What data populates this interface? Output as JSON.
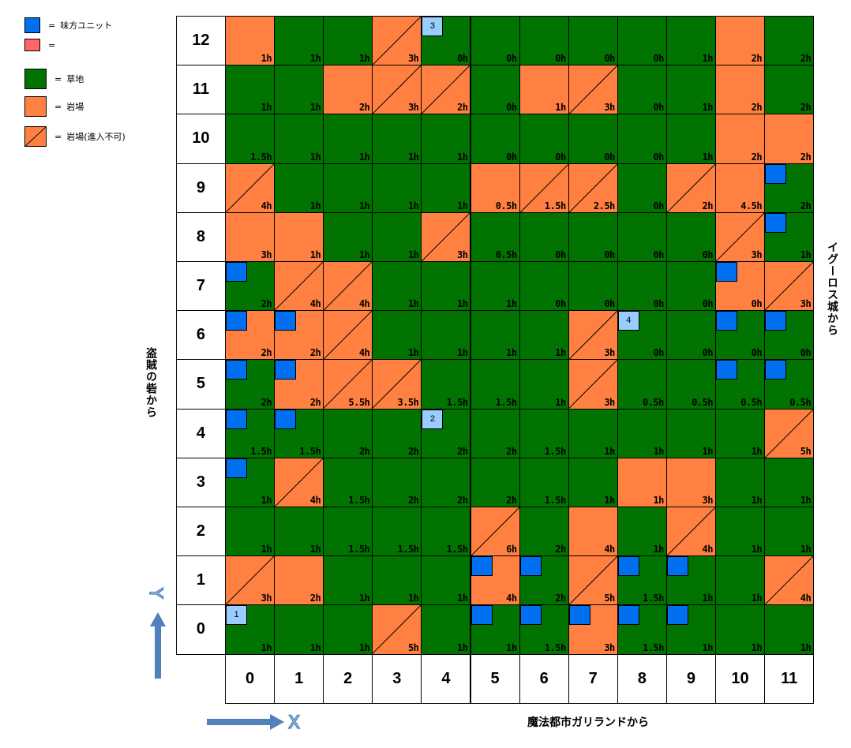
{
  "colors": {
    "grass": "#007300",
    "rock": "#ff8040",
    "ally": "#0070f0",
    "ally_light": "#99ccff",
    "enemy": "#ff6666"
  },
  "legend": [
    {
      "kind": "ally",
      "eq": "=",
      "text": "味方ユニット"
    },
    {
      "kind": "enemy",
      "eq": "=",
      "text": ""
    },
    {
      "kind": "grass",
      "eq": "=",
      "text": "草地"
    },
    {
      "kind": "rock",
      "eq": "=",
      "text": "岩場"
    },
    {
      "kind": "blocked",
      "eq": "=",
      "text": "岩場(進入不可)"
    }
  ],
  "axis": {
    "x_labels": [
      "0",
      "1",
      "2",
      "3",
      "4",
      "5",
      "6",
      "7",
      "8",
      "9",
      "10",
      "11"
    ],
    "y_labels": [
      "0",
      "1",
      "2",
      "3",
      "4",
      "5",
      "6",
      "7",
      "8",
      "9",
      "10",
      "11",
      "12"
    ],
    "x_symbol": "X",
    "y_symbol": "Y"
  },
  "directions": {
    "left": "盗賊の砦から",
    "right": "イグーロス城から",
    "bottom": "魔法都市ガリランドから"
  },
  "terrain_key": "G = grass, R = rock, B = rock (impassable); rows listed from y=12 down to y=0",
  "terrain_rows": [
    [
      "R",
      "G",
      "G",
      "B",
      "G",
      "G",
      "G",
      "G",
      "G",
      "G",
      "R",
      "G"
    ],
    [
      "G",
      "G",
      "R",
      "B",
      "B",
      "G",
      "R",
      "B",
      "G",
      "G",
      "R",
      "G"
    ],
    [
      "G",
      "G",
      "G",
      "G",
      "G",
      "G",
      "G",
      "G",
      "G",
      "G",
      "R",
      "R"
    ],
    [
      "B",
      "G",
      "G",
      "G",
      "G",
      "R",
      "B",
      "B",
      "G",
      "B",
      "R",
      "G"
    ],
    [
      "R",
      "R",
      "G",
      "G",
      "B",
      "G",
      "G",
      "G",
      "G",
      "G",
      "B",
      "G"
    ],
    [
      "G",
      "B",
      "B",
      "G",
      "G",
      "G",
      "G",
      "G",
      "G",
      "G",
      "R",
      "B"
    ],
    [
      "R",
      "R",
      "B",
      "G",
      "G",
      "G",
      "G",
      "B",
      "G",
      "G",
      "G",
      "G"
    ],
    [
      "G",
      "R",
      "B",
      "B",
      "G",
      "G",
      "G",
      "B",
      "G",
      "G",
      "G",
      "G"
    ],
    [
      "G",
      "G",
      "G",
      "G",
      "G",
      "G",
      "G",
      "G",
      "G",
      "G",
      "G",
      "B"
    ],
    [
      "G",
      "B",
      "G",
      "G",
      "G",
      "G",
      "G",
      "G",
      "R",
      "R",
      "G",
      "G"
    ],
    [
      "G",
      "G",
      "G",
      "G",
      "G",
      "B",
      "G",
      "R",
      "G",
      "B",
      "G",
      "G"
    ],
    [
      "B",
      "R",
      "G",
      "G",
      "G",
      "R",
      "G",
      "B",
      "G",
      "G",
      "G",
      "B"
    ],
    [
      "G",
      "G",
      "G",
      "B",
      "G",
      "G",
      "G",
      "R",
      "G",
      "G",
      "G",
      "G"
    ]
  ],
  "height_rows": [
    [
      "1h",
      "1h",
      "1h",
      "3h",
      "0h",
      "0h",
      "0h",
      "0h",
      "0h",
      "1h",
      "2h",
      "2h"
    ],
    [
      "1h",
      "1h",
      "2h",
      "3h",
      "2h",
      "0h",
      "1h",
      "3h",
      "0h",
      "1h",
      "2h",
      "2h"
    ],
    [
      "1.5h",
      "1h",
      "1h",
      "1h",
      "1h",
      "0h",
      "0h",
      "0h",
      "0h",
      "1h",
      "2h",
      "2h"
    ],
    [
      "4h",
      "1h",
      "1h",
      "1h",
      "1h",
      "0.5h",
      "1.5h",
      "2.5h",
      "0h",
      "2h",
      "4.5h",
      "2h"
    ],
    [
      "3h",
      "1h",
      "1h",
      "1h",
      "3h",
      "0.5h",
      "0h",
      "0h",
      "0h",
      "0h",
      "3h",
      "1h"
    ],
    [
      "2h",
      "4h",
      "4h",
      "1h",
      "1h",
      "1h",
      "0h",
      "0h",
      "0h",
      "0h",
      "0h",
      "3h"
    ],
    [
      "2h",
      "2h",
      "4h",
      "1h",
      "1h",
      "1h",
      "1h",
      "3h",
      "0h",
      "0h",
      "0h",
      "0h"
    ],
    [
      "2h",
      "2h",
      "5.5h",
      "3.5h",
      "1.5h",
      "1.5h",
      "1h",
      "3h",
      "0.5h",
      "0.5h",
      "0.5h",
      "0.5h"
    ],
    [
      "1.5h",
      "1.5h",
      "2h",
      "2h",
      "2h",
      "2h",
      "1.5h",
      "1h",
      "1h",
      "1h",
      "1h",
      "5h"
    ],
    [
      "1h",
      "4h",
      "1.5h",
      "2h",
      "2h",
      "2h",
      "1.5h",
      "1h",
      "1h",
      "3h",
      "1h",
      "1h"
    ],
    [
      "1h",
      "1h",
      "1.5h",
      "1.5h",
      "1.5h",
      "6h",
      "2h",
      "4h",
      "1h",
      "4h",
      "1h",
      "1h"
    ],
    [
      "3h",
      "2h",
      "1h",
      "1h",
      "1h",
      "4h",
      "2h",
      "5h",
      "1.5h",
      "1h",
      "1h",
      "4h"
    ],
    [
      "1h",
      "1h",
      "1h",
      "5h",
      "1h",
      "1h",
      "1.5h",
      "3h",
      "1.5h",
      "1h",
      "1h",
      "1h"
    ]
  ],
  "units": [
    {
      "x": 4,
      "y": 12,
      "label": "3"
    },
    {
      "x": 11,
      "y": 9,
      "label": ""
    },
    {
      "x": 11,
      "y": 8,
      "label": ""
    },
    {
      "x": 0,
      "y": 7,
      "label": ""
    },
    {
      "x": 10,
      "y": 7,
      "label": ""
    },
    {
      "x": 0,
      "y": 6,
      "label": ""
    },
    {
      "x": 1,
      "y": 6,
      "label": ""
    },
    {
      "x": 8,
      "y": 6,
      "label": "4"
    },
    {
      "x": 10,
      "y": 6,
      "label": ""
    },
    {
      "x": 11,
      "y": 6,
      "label": ""
    },
    {
      "x": 0,
      "y": 5,
      "label": ""
    },
    {
      "x": 1,
      "y": 5,
      "label": ""
    },
    {
      "x": 10,
      "y": 5,
      "label": ""
    },
    {
      "x": 11,
      "y": 5,
      "label": ""
    },
    {
      "x": 0,
      "y": 4,
      "label": ""
    },
    {
      "x": 1,
      "y": 4,
      "label": ""
    },
    {
      "x": 4,
      "y": 4,
      "label": "2"
    },
    {
      "x": 0,
      "y": 3,
      "label": ""
    },
    {
      "x": 5,
      "y": 1,
      "label": ""
    },
    {
      "x": 6,
      "y": 1,
      "label": ""
    },
    {
      "x": 8,
      "y": 1,
      "label": ""
    },
    {
      "x": 9,
      "y": 1,
      "label": ""
    },
    {
      "x": 0,
      "y": 0,
      "label": "1"
    },
    {
      "x": 5,
      "y": 0,
      "label": ""
    },
    {
      "x": 6,
      "y": 0,
      "label": ""
    },
    {
      "x": 7,
      "y": 0,
      "label": ""
    },
    {
      "x": 8,
      "y": 0,
      "label": ""
    },
    {
      "x": 9,
      "y": 0,
      "label": ""
    }
  ]
}
